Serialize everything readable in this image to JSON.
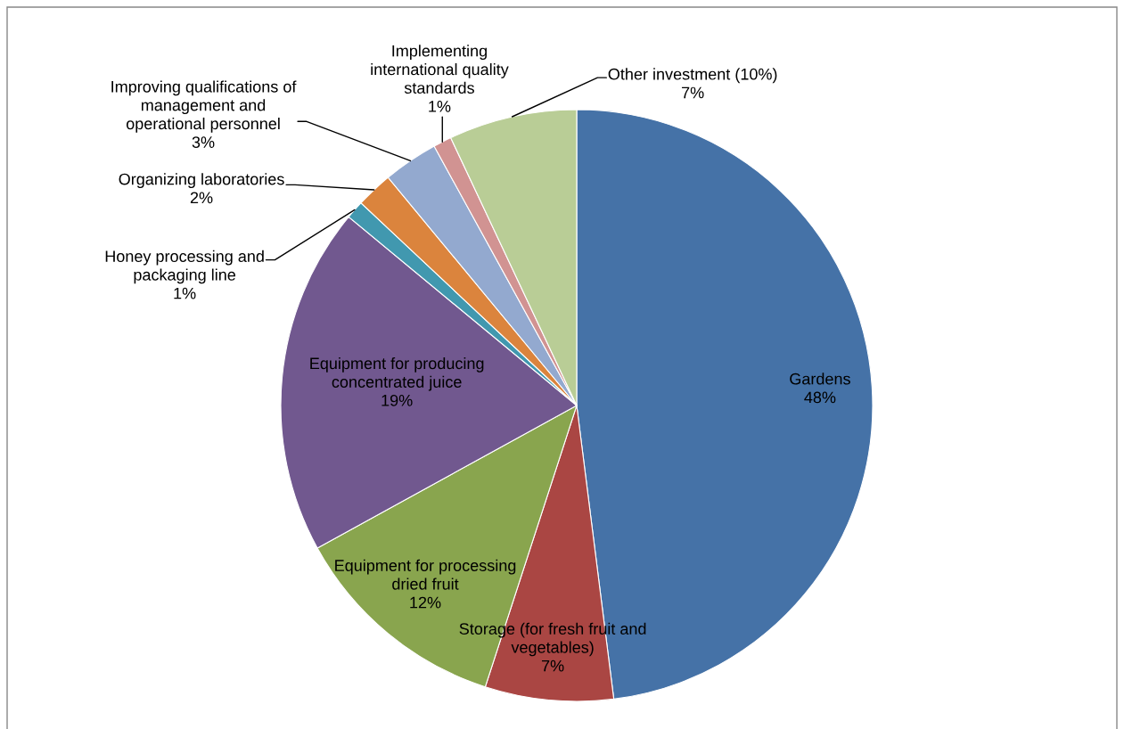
{
  "chart_data": {
    "type": "pie",
    "categories": [
      "Gardens",
      "Storage (for fresh fruit and\nvegetables)",
      "Equipment for processing\ndried fruit",
      "Equipment for producing\nconcentrated juice",
      "Honey processing and\npackaging line",
      "Organizing laboratories",
      "Improving qualifications of\nmanagement and\noperational personnel",
      "Implementing\ninternational quality\nstandards",
      "Other investment (10%)"
    ],
    "values": [
      48,
      7,
      12,
      19,
      1,
      2,
      3,
      1,
      7
    ],
    "value_labels": [
      "48%",
      "7%",
      "12%",
      "19%",
      "1%",
      "2%",
      "3%",
      "1%",
      "7%"
    ],
    "colors": [
      "#4572a7",
      "#aa4643",
      "#89a54e",
      "#71588f",
      "#4198af",
      "#db843d",
      "#93a9cf",
      "#d19392",
      "#b9cd96"
    ],
    "legend": false
  }
}
